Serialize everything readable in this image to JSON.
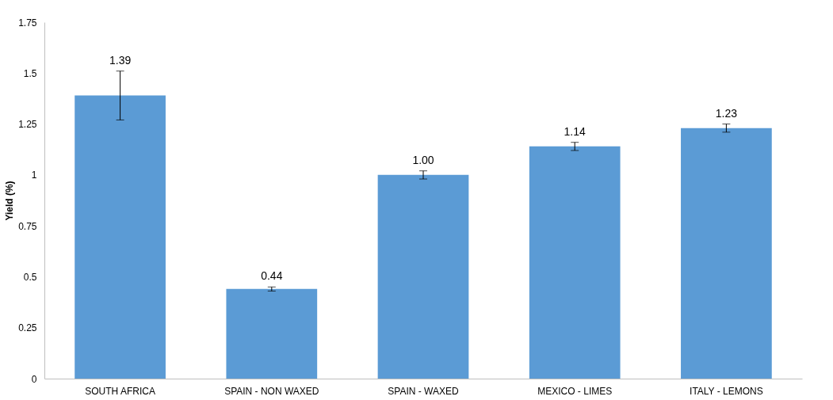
{
  "chart_data": {
    "type": "bar",
    "ylabel": "Yield (%)",
    "categories": [
      "SOUTH AFRICA",
      "SPAIN - NON WAXED",
      "SPAIN - WAXED",
      "MEXICO - LIMES",
      "ITALY - LEMONS"
    ],
    "values": [
      1.39,
      0.44,
      1.0,
      1.14,
      1.23
    ],
    "errors": [
      0.12,
      0.01,
      0.02,
      0.02,
      0.02
    ],
    "value_labels": [
      "1.39",
      "0.44",
      "1.00",
      "1.14",
      "1.23"
    ],
    "color": "#5b9bd5",
    "ylim": [
      0,
      1.75
    ],
    "yticks": [
      0,
      0.25,
      0.5,
      0.75,
      1,
      1.25,
      1.5,
      1.75
    ],
    "grid": false
  }
}
